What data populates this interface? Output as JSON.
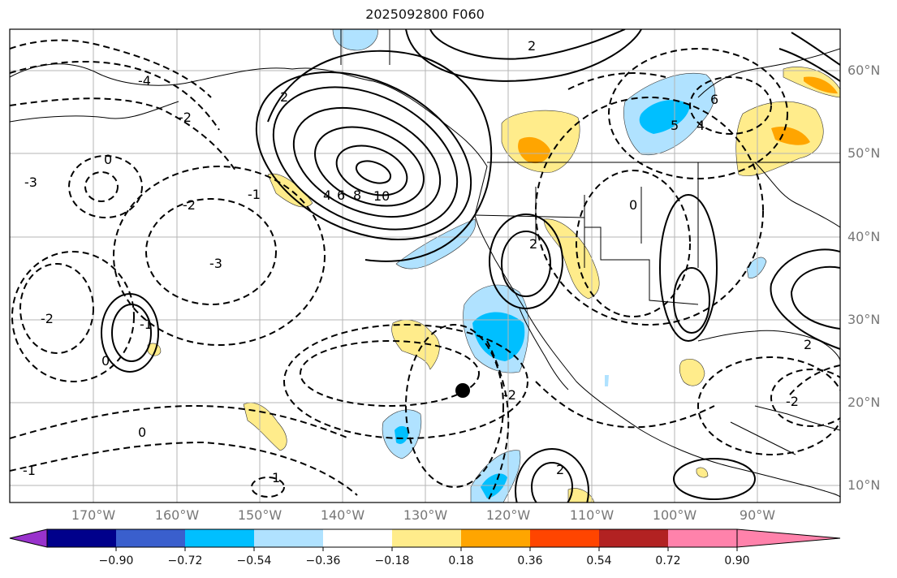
{
  "title": "2025092800 F060",
  "lat_labels": [
    "60°N",
    "50°N",
    "40°N",
    "30°N",
    "20°N",
    "10°N"
  ],
  "lon_labels": [
    "170°W",
    "160°W",
    "150°W",
    "140°W",
    "130°W",
    "120°W",
    "110°W",
    "100°W",
    "90°W"
  ],
  "colorbar": {
    "colors": [
      "#9932cc",
      "#00008b",
      "#3a5fcd",
      "#00bfff",
      "#b0e2ff",
      "#ffffff",
      "#ffec8b",
      "#ffa500",
      "#ff4500",
      "#b22222",
      "#ff82ab"
    ],
    "ticks": [
      "−0.90",
      "−0.72",
      "−0.54",
      "−0.36",
      "−0.18",
      "0.18",
      "0.36",
      "0.54",
      "0.72",
      "0.90"
    ]
  },
  "contour_labels": [
    "10",
    "8",
    "6",
    "4",
    "2",
    "0",
    "-1",
    "-2",
    "-3",
    "6",
    "5",
    "4",
    "0",
    "2",
    "-2",
    "2",
    "1",
    "0",
    "-1",
    "2",
    "-2",
    "0",
    "-1",
    "-2",
    "-3",
    "-4",
    "2",
    "-2"
  ],
  "marker": "storm-position"
}
